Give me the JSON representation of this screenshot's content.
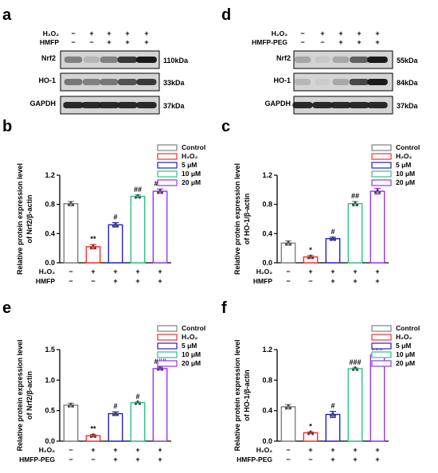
{
  "panel_a": {
    "letter": "a",
    "row_labels": [
      "H₂O₂",
      "HMFP"
    ],
    "signs": [
      [
        "−",
        "+",
        "+",
        "+",
        "+"
      ],
      [
        "−",
        "−",
        "+",
        "+",
        "+"
      ]
    ],
    "blots": [
      {
        "name": "Nrf2",
        "size": "110kDa",
        "intensity": [
          0.55,
          0.25,
          0.55,
          0.85,
          0.95
        ]
      },
      {
        "name": "HO-1",
        "size": "33kDa",
        "intensity": [
          0.6,
          0.55,
          0.6,
          0.75,
          0.85
        ]
      },
      {
        "name": "GAPDH",
        "size": "37kDa",
        "intensity": [
          0.9,
          0.9,
          0.9,
          0.9,
          0.9
        ]
      }
    ]
  },
  "panel_d": {
    "letter": "d",
    "row_labels": [
      "H₂O₂",
      "HMFP-PEG"
    ],
    "signs": [
      [
        "−",
        "+",
        "+",
        "+",
        "+"
      ],
      [
        "−",
        "−",
        "+",
        "+",
        "+"
      ]
    ],
    "blots": [
      {
        "name": "Nrf2",
        "size": "55kDa",
        "intensity": [
          0.35,
          0.1,
          0.35,
          0.7,
          0.95
        ]
      },
      {
        "name": "HO-1",
        "size": "84kDa",
        "intensity": [
          0.25,
          0.05,
          0.35,
          0.8,
          0.95
        ]
      },
      {
        "name": "GAPDH",
        "size": "37kDa",
        "intensity": [
          0.9,
          0.9,
          0.9,
          0.9,
          0.9
        ]
      }
    ]
  },
  "legend": {
    "entries": [
      {
        "label": "Control",
        "color": "#808080"
      },
      {
        "label": "H₂O₂",
        "color": "#ff2a2a"
      },
      {
        "label": "5 μM",
        "color": "#2020c8"
      },
      {
        "label": "10 μM",
        "color": "#2ec27e"
      },
      {
        "label": "20 μM",
        "color": "#9933ee"
      }
    ]
  },
  "chart_data": [
    {
      "letter": "b",
      "type": "bar",
      "ylabel": "Relative protein expression level of Nrf2/β-actin",
      "categories": [
        "Control",
        "H₂O₂",
        "5 μM",
        "10 μM",
        "20 μM"
      ],
      "values": [
        0.81,
        0.22,
        0.52,
        0.91,
        0.98
      ],
      "errors": [
        0.03,
        0.03,
        0.03,
        0.02,
        0.03
      ],
      "annotations": [
        "",
        "**",
        "#",
        "##",
        "###"
      ],
      "ylim": [
        0,
        1.2
      ],
      "yticks": [
        "0.0",
        "0.4",
        "0.8",
        "1.2"
      ],
      "treat_rows": [
        {
          "label": "H₂O₂",
          "signs": [
            "−",
            "+",
            "+",
            "+",
            "+"
          ]
        },
        {
          "label": "HMFP",
          "signs": [
            "−",
            "−",
            "+",
            "+",
            "+"
          ]
        }
      ]
    },
    {
      "letter": "c",
      "type": "bar",
      "ylabel": "Relative protein expression level of HO-1/β-actin",
      "categories": [
        "Control",
        "H₂O₂",
        "5 μM",
        "10 μM",
        "20 μM"
      ],
      "values": [
        0.27,
        0.08,
        0.33,
        0.81,
        0.98
      ],
      "errors": [
        0.03,
        0.02,
        0.02,
        0.03,
        0.04
      ],
      "annotations": [
        "",
        "*",
        "#",
        "##",
        "###"
      ],
      "ylim": [
        0,
        1.2
      ],
      "yticks": [
        "0.0",
        "0.4",
        "0.8",
        "1.2"
      ],
      "treat_rows": [
        {
          "label": "H₂O₂",
          "signs": [
            "−",
            "+",
            "+",
            "+",
            "+"
          ]
        },
        {
          "label": "HMFP",
          "signs": [
            "−",
            "−",
            "+",
            "+",
            "+"
          ]
        }
      ]
    },
    {
      "letter": "e",
      "type": "bar",
      "ylabel": "Relative protein expression level of Nrf2/β-actin",
      "categories": [
        "Control",
        "H₂O₂",
        "5 μM",
        "10 μM",
        "20 μM"
      ],
      "values": [
        0.59,
        0.09,
        0.45,
        0.63,
        1.19
      ],
      "errors": [
        0.03,
        0.02,
        0.03,
        0.01,
        0.02
      ],
      "annotations": [
        "",
        "**",
        "#",
        "#",
        "###"
      ],
      "ylim": [
        0,
        1.5
      ],
      "yticks": [
        "0.0",
        "0.5",
        "1.0",
        "1.5"
      ],
      "treat_rows": [
        {
          "label": "H₂O₂",
          "signs": [
            "−",
            "+",
            "+",
            "+",
            "+"
          ]
        },
        {
          "label": "HMFP-PEG",
          "signs": [
            "−",
            "−",
            "+",
            "+",
            "+"
          ]
        }
      ]
    },
    {
      "letter": "f",
      "type": "bar",
      "ylabel": "Relative protein expression level of HO-1/β-actin",
      "categories": [
        "Control",
        "H₂O₂",
        "5 μM",
        "10 μM",
        "20 μM"
      ],
      "values": [
        0.45,
        0.11,
        0.35,
        0.95,
        1.13
      ],
      "errors": [
        0.03,
        0.01,
        0.04,
        0.01,
        0.02
      ],
      "annotations": [
        "",
        "*",
        "#",
        "###",
        "###"
      ],
      "ylim": [
        0,
        1.2
      ],
      "yticks": [
        "0.0",
        "0.4",
        "0.8",
        "1.2"
      ],
      "treat_rows": [
        {
          "label": "H₂O₂",
          "signs": [
            "−",
            "+",
            "+",
            "+",
            "+"
          ]
        },
        {
          "label": "HMFP-PEG",
          "signs": [
            "−",
            "−",
            "+",
            "+",
            "+"
          ]
        }
      ]
    }
  ]
}
